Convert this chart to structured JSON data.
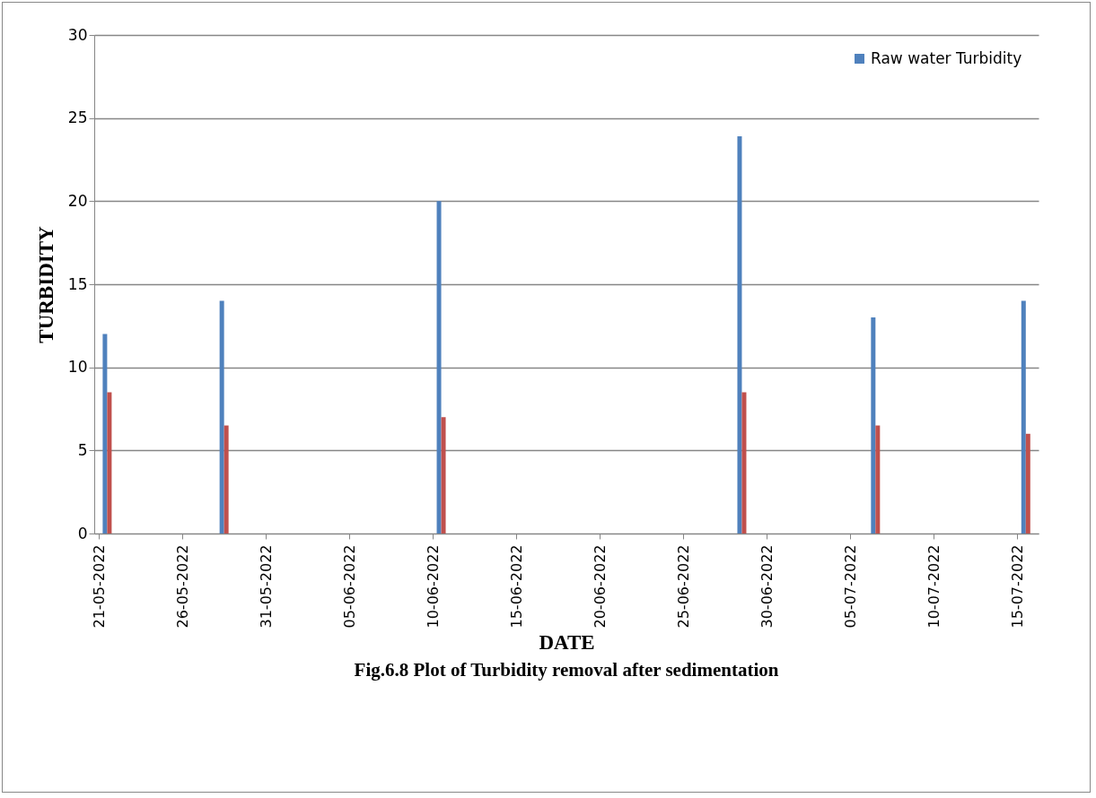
{
  "chart_data": {
    "type": "bar",
    "title": "Fig.6.8 Plot of Turbidity removal after sedimentation",
    "xlabel": "DATE",
    "ylabel": "TURBIDITY",
    "x": [
      "2022-05-21",
      "2022-05-28",
      "2022-06-10",
      "2022-06-28",
      "2022-07-06",
      "2022-07-15"
    ],
    "series": [
      {
        "name": "Raw water Turbidity",
        "color": "#4f81bd",
        "values": [
          12,
          14,
          20,
          23.9,
          13,
          14
        ]
      },
      {
        "color": "#c0504d",
        "values": [
          8.5,
          6.5,
          7,
          8.5,
          6.5,
          6
        ]
      }
    ],
    "xlim": [
      "2022-05-21",
      "2022-07-16"
    ],
    "xticks": [
      {
        "value": "2022-05-21",
        "label": "21-05-2022"
      },
      {
        "value": "2022-05-26",
        "label": "26-05-2022"
      },
      {
        "value": "2022-05-31",
        "label": "31-05-2022"
      },
      {
        "value": "2022-06-05",
        "label": "05-06-2022"
      },
      {
        "value": "2022-06-10",
        "label": "10-06-2022"
      },
      {
        "value": "2022-06-15",
        "label": "15-06-2022"
      },
      {
        "value": "2022-06-20",
        "label": "20-06-2022"
      },
      {
        "value": "2022-06-25",
        "label": "25-06-2022"
      },
      {
        "value": "2022-06-30",
        "label": "30-06-2022"
      },
      {
        "value": "2022-07-05",
        "label": "05-07-2022"
      },
      {
        "value": "2022-07-10",
        "label": "10-07-2022"
      },
      {
        "value": "2022-07-15",
        "label": "15-07-2022"
      }
    ],
    "ylim": [
      0,
      30
    ],
    "yticks": [
      0,
      5,
      10,
      15,
      20,
      25,
      30
    ],
    "grid": "y",
    "legend": "top right"
  }
}
